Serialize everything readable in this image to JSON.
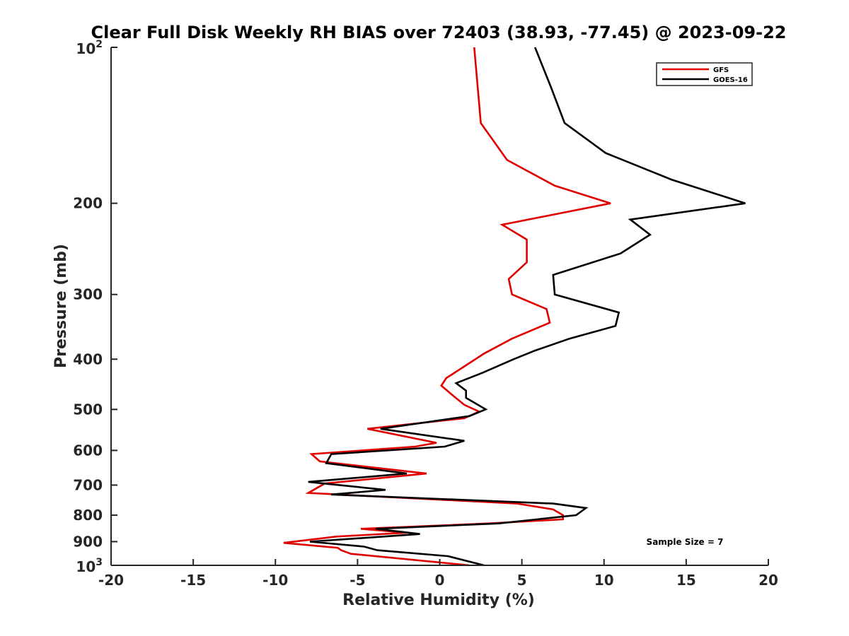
{
  "chart_data": {
    "type": "line",
    "title": "Clear Full Disk Weekly RH BIAS over 72403 (38.93, -77.45) @ 2023-09-22",
    "xlabel": "Relative Humidity (%)",
    "ylabel": "Pressure (mb)",
    "xlim": [
      -20,
      20
    ],
    "ylim": [
      100,
      1000
    ],
    "y_scale": "log",
    "y_reversed": true,
    "x_ticks": [
      -20,
      -15,
      -10,
      -5,
      0,
      5,
      10,
      15,
      20
    ],
    "x_tick_labels": [
      "-20",
      "-15",
      "-10",
      "-5",
      "0",
      "5",
      "10",
      "15",
      "20"
    ],
    "y_ticks": [
      200,
      300,
      400,
      500,
      600,
      700,
      800,
      900
    ],
    "y_tick_labels": [
      "200",
      "300",
      "400",
      "500",
      "600",
      "700",
      "800",
      "900"
    ],
    "y_end_labels": {
      "top": {
        "base": "10",
        "exp": "2"
      },
      "bottom": {
        "base": "10",
        "exp": "3"
      }
    },
    "grid": false,
    "legend_position": "top-right",
    "annotation": "Sample Size = 7",
    "series": [
      {
        "name": "GFS",
        "color": "#e00000",
        "points": [
          [
            2.1,
            100
          ],
          [
            2.5,
            140
          ],
          [
            4.1,
            165
          ],
          [
            7.0,
            185
          ],
          [
            10.4,
            200
          ],
          [
            3.8,
            220
          ],
          [
            5.3,
            235
          ],
          [
            5.3,
            260
          ],
          [
            4.2,
            280
          ],
          [
            4.4,
            300
          ],
          [
            6.5,
            320
          ],
          [
            6.7,
            340
          ],
          [
            4.4,
            365
          ],
          [
            2.7,
            390
          ],
          [
            1.4,
            415
          ],
          [
            0.4,
            435
          ],
          [
            0.1,
            450
          ],
          [
            0.8,
            470
          ],
          [
            1.5,
            490
          ],
          [
            2.4,
            505
          ],
          [
            1.5,
            520
          ],
          [
            -4.4,
            545
          ],
          [
            -0.2,
            580
          ],
          [
            -1.5,
            590
          ],
          [
            -7.8,
            610
          ],
          [
            -7.3,
            630
          ],
          [
            -0.8,
            665
          ],
          [
            -7.0,
            695
          ],
          [
            -8.0,
            725
          ],
          [
            4.7,
            760
          ],
          [
            6.9,
            780
          ],
          [
            7.5,
            800
          ],
          [
            7.5,
            815
          ],
          [
            3.0,
            830
          ],
          [
            -4.8,
            850
          ],
          [
            -2.0,
            865
          ],
          [
            -6.3,
            880
          ],
          [
            -9.5,
            905
          ],
          [
            -6.2,
            925
          ],
          [
            -6.0,
            935
          ],
          [
            -5.4,
            950
          ],
          [
            1.8,
            1000
          ]
        ]
      },
      {
        "name": "GOES-16",
        "color": "#000000",
        "points": [
          [
            5.8,
            100
          ],
          [
            6.8,
            120
          ],
          [
            7.6,
            140
          ],
          [
            10.1,
            160
          ],
          [
            14.1,
            180
          ],
          [
            18.6,
            200
          ],
          [
            11.6,
            215
          ],
          [
            12.8,
            230
          ],
          [
            11.0,
            250
          ],
          [
            6.9,
            275
          ],
          [
            7.0,
            300
          ],
          [
            10.9,
            325
          ],
          [
            10.7,
            345
          ],
          [
            7.9,
            365
          ],
          [
            5.8,
            385
          ],
          [
            4.5,
            400
          ],
          [
            2.6,
            425
          ],
          [
            1.0,
            445
          ],
          [
            1.6,
            460
          ],
          [
            1.6,
            475
          ],
          [
            2.8,
            500
          ],
          [
            1.8,
            515
          ],
          [
            -3.6,
            545
          ],
          [
            1.5,
            575
          ],
          [
            0.3,
            590
          ],
          [
            -6.6,
            610
          ],
          [
            -6.9,
            635
          ],
          [
            -2.0,
            665
          ],
          [
            -8.0,
            690
          ],
          [
            -3.3,
            715
          ],
          [
            -6.6,
            730
          ],
          [
            6.9,
            760
          ],
          [
            8.9,
            775
          ],
          [
            8.3,
            800
          ],
          [
            3.6,
            830
          ],
          [
            -3.9,
            850
          ],
          [
            -1.2,
            870
          ],
          [
            -7.9,
            900
          ],
          [
            -4.6,
            920
          ],
          [
            -3.8,
            935
          ],
          [
            0.5,
            960
          ],
          [
            2.7,
            1000
          ]
        ]
      }
    ]
  }
}
